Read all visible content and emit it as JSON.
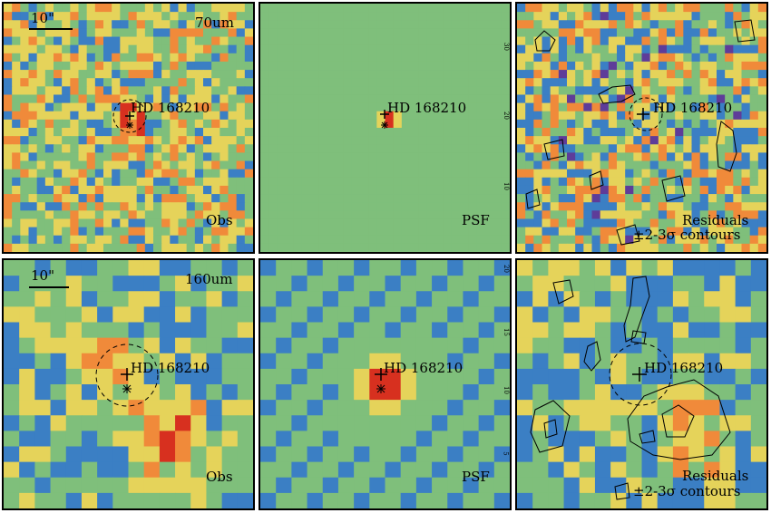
{
  "panels": [
    {
      "id": "p70-obs",
      "band": "70um",
      "kind": "Obs",
      "label": "Obs",
      "scale_label": "10\"",
      "star_label": "HD 168210"
    },
    {
      "id": "p70-psf",
      "kind": "PSF",
      "label": "PSF",
      "star_label": "HD 168210",
      "tick_labels": [
        "30",
        "20",
        "10"
      ]
    },
    {
      "id": "p70-res",
      "kind": "Residuals",
      "label": "Residuals",
      "sublabel": "±2-3σ contours",
      "star_label": "HD 168210"
    },
    {
      "id": "p160-obs",
      "band": "160um",
      "kind": "Obs",
      "label": "Obs",
      "scale_label": "10\"",
      "star_label": "HD 168210"
    },
    {
      "id": "p160-psf",
      "kind": "PSF",
      "label": "PSF",
      "star_label": "HD 168210",
      "tick_labels": [
        "20",
        "15",
        "10",
        "5"
      ]
    },
    {
      "id": "p160-res",
      "kind": "Residuals",
      "label": "Residuals",
      "sublabel": "±2-3σ contours",
      "star_label": "HD 168210"
    }
  ],
  "colors": {
    "low": "#5e3c99",
    "mid_low": "#3b7fc4",
    "mid": "#7fbf7b",
    "mid_high": "#e5d35a",
    "high": "#f08a3a",
    "peak": "#d7301f",
    "border": "#000000"
  }
}
